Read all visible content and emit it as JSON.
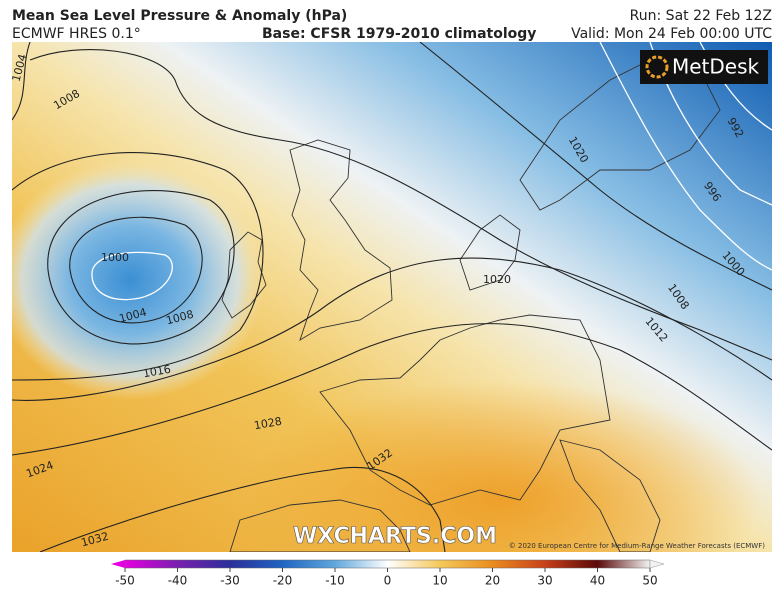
{
  "header": {
    "title": "Mean Sea Level Pressure & Anomaly (hPa)",
    "model": "ECMWF HRES 0.1°",
    "base": "Base: CFSR 1979-2010 climatology",
    "run": "Run: Sat 22 Feb 12Z",
    "valid": "Valid: Mon 24 Feb 00:00 UTC"
  },
  "map": {
    "logo": "MetDesk",
    "watermark": "WXCHARTS.COM",
    "copyright": "© 2020 European Centre for Medium-Range Weather Forecasts (ECMWF)",
    "contour_labels": [
      1004,
      1008,
      1000,
      1004,
      1008,
      1016,
      1028,
      1024,
      1032,
      1032,
      1020,
      992,
      996,
      1000,
      1008,
      1012,
      1020
    ]
  },
  "colorbar": {
    "ticks": [
      -50,
      -40,
      -30,
      -20,
      -10,
      0,
      10,
      20,
      30,
      40,
      50
    ],
    "colors": [
      "#e400e0",
      "#7a1fb0",
      "#2a2f9a",
      "#1f64c2",
      "#5fa8dc",
      "#ffffff",
      "#f5c85a",
      "#ea8c1e",
      "#c8401a",
      "#5a0a0a",
      "#f2f2f2"
    ]
  }
}
